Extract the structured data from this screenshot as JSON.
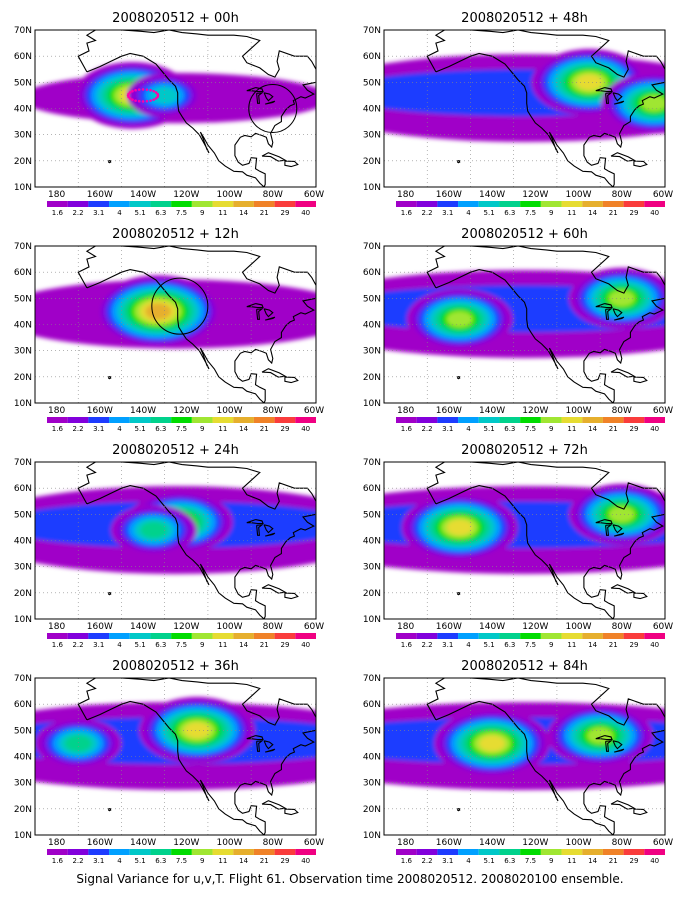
{
  "caption": "Signal Variance for u,v,T. Flight 61. Observation time 2008020512. 2008020100 ensemble.",
  "colorbar": {
    "labels": [
      "1.6",
      "2.2",
      "3.1",
      "4",
      "5.1",
      "6.3",
      "7.5",
      "9",
      "11",
      "14",
      "21",
      "29",
      "40"
    ],
    "colors": [
      "#a000c8",
      "#8200dc",
      "#1e3cff",
      "#00a0ff",
      "#00c8c8",
      "#00d28c",
      "#00dc00",
      "#a0e632",
      "#e6dc32",
      "#e6af2d",
      "#f08228",
      "#fa3c3c",
      "#f00082"
    ]
  },
  "axes": {
    "x_ticks": [
      "180",
      "160W",
      "140W",
      "120W",
      "100W",
      "80W",
      "60W"
    ],
    "y_ticks": [
      "10N",
      "20N",
      "30N",
      "40N",
      "50N",
      "60N",
      "70N"
    ]
  },
  "chart_data": [
    {
      "type": "heatmap",
      "title": "2008020512 + 00h",
      "xlim": [
        "170E",
        "60W"
      ],
      "ylim": [
        "10N",
        "70N"
      ],
      "grid": true,
      "blobs": [
        {
          "lon": -145,
          "lat": 45,
          "peak": "11"
        },
        {
          "lon": -130,
          "lat": 45,
          "peak": "5.1"
        }
      ],
      "annotations": [
        "observation track (dotted magenta)",
        "circle near 80W 40N"
      ]
    },
    {
      "type": "heatmap",
      "title": "2008020512 + 12h",
      "xlim": [
        "170E",
        "60W"
      ],
      "ylim": [
        "10N",
        "70N"
      ],
      "grid": true,
      "blobs": [
        {
          "lon": -133,
          "lat": 45,
          "peak": "14"
        }
      ],
      "annotations": [
        "circle near 123W 47N"
      ]
    },
    {
      "type": "heatmap",
      "title": "2008020512 + 24h",
      "xlim": [
        "170E",
        "60W"
      ],
      "ylim": [
        "10N",
        "70N"
      ],
      "grid": true,
      "blobs": [
        {
          "lon": -123,
          "lat": 47,
          "peak": "9"
        },
        {
          "lon": -135,
          "lat": 44,
          "peak": "6.3"
        }
      ]
    },
    {
      "type": "heatmap",
      "title": "2008020512 + 36h",
      "xlim": [
        "170E",
        "60W"
      ],
      "ylim": [
        "10N",
        "70N"
      ],
      "grid": true,
      "blobs": [
        {
          "lon": -115,
          "lat": 50,
          "peak": "11"
        },
        {
          "lon": -170,
          "lat": 45,
          "peak": "6.3"
        }
      ]
    },
    {
      "type": "heatmap",
      "title": "2008020512 + 48h",
      "xlim": [
        "170E",
        "60W"
      ],
      "ylim": [
        "10N",
        "70N"
      ],
      "grid": true,
      "blobs": [
        {
          "lon": -95,
          "lat": 50,
          "peak": "11"
        },
        {
          "lon": -65,
          "lat": 42,
          "peak": "9"
        }
      ]
    },
    {
      "type": "heatmap",
      "title": "2008020512 + 60h",
      "xlim": [
        "170E",
        "60W"
      ],
      "ylim": [
        "10N",
        "70N"
      ],
      "grid": true,
      "blobs": [
        {
          "lon": -80,
          "lat": 50,
          "peak": "9"
        },
        {
          "lon": -155,
          "lat": 42,
          "peak": "9"
        }
      ]
    },
    {
      "type": "heatmap",
      "title": "2008020512 + 72h",
      "xlim": [
        "170E",
        "60W"
      ],
      "ylim": [
        "10N",
        "70N"
      ],
      "grid": true,
      "blobs": [
        {
          "lon": -155,
          "lat": 45,
          "peak": "11"
        },
        {
          "lon": -80,
          "lat": 50,
          "peak": "9"
        }
      ]
    },
    {
      "type": "heatmap",
      "title": "2008020512 + 84h",
      "xlim": [
        "170E",
        "60W"
      ],
      "ylim": [
        "10N",
        "70N"
      ],
      "grid": true,
      "blobs": [
        {
          "lon": -140,
          "lat": 45,
          "peak": "11"
        },
        {
          "lon": -90,
          "lat": 48,
          "peak": "9"
        }
      ]
    }
  ]
}
